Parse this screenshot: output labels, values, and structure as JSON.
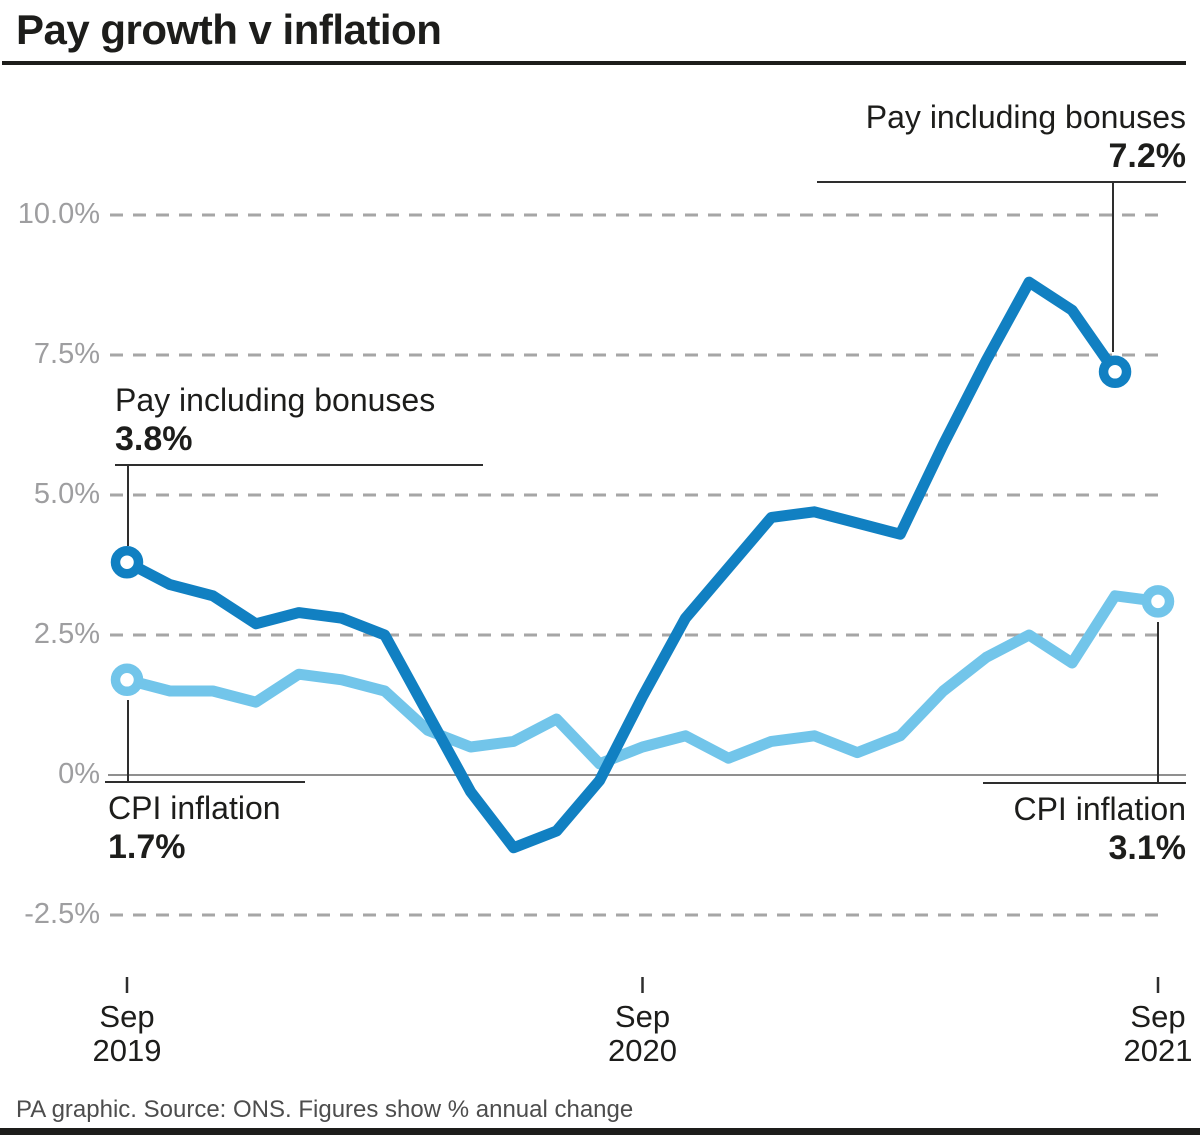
{
  "header": {
    "title": "Pay growth v inflation"
  },
  "footer": {
    "credit": "PA graphic. Source: ONS. Figures show % annual change"
  },
  "colors": {
    "pay": "#1180c2",
    "cpi": "#72c5ea",
    "grid": "#a6a6a6",
    "zero_line": "#8f8f8f",
    "axis_label": "#9e9ea0",
    "connector": "#2e2e2e"
  },
  "chart_data": {
    "type": "line",
    "title": "Pay growth v inflation",
    "note": "Figures show % annual change",
    "x_interval": "monthly",
    "x_range": [
      "Sep 2019",
      "Sep 2021"
    ],
    "ylim": [
      -2.5,
      10.0
    ],
    "grid": "horizontal dashed",
    "y_ticks": [
      {
        "label": "10.0%",
        "value": 10.0
      },
      {
        "label": "7.5%",
        "value": 7.5
      },
      {
        "label": "5.0%",
        "value": 5.0
      },
      {
        "label": "2.5%",
        "value": 2.5
      },
      {
        "label": "0%",
        "value": 0
      },
      {
        "label": "-2.5%",
        "value": -2.5
      }
    ],
    "x_ticks": [
      {
        "line1": "Sep",
        "line2": "2019",
        "month_index": 0
      },
      {
        "line1": "Sep",
        "line2": "2020",
        "month_index": 12
      },
      {
        "line1": "Sep",
        "line2": "2021",
        "month_index": 24
      }
    ],
    "series": [
      {
        "name": "Pay including bonuses",
        "color_key": "pay",
        "start_month_index": 0,
        "values": [
          3.8,
          3.4,
          3.2,
          2.7,
          2.9,
          2.8,
          2.5,
          1.1,
          -0.3,
          -1.3,
          -1.0,
          -0.1,
          1.4,
          2.8,
          3.7,
          4.6,
          4.7,
          4.5,
          4.3,
          5.9,
          7.4,
          8.8,
          8.3,
          7.2
        ],
        "first_value_label": "3.8%",
        "last_value_label": "7.2%"
      },
      {
        "name": "CPI inflation",
        "color_key": "cpi",
        "start_month_index": 0,
        "values": [
          1.7,
          1.5,
          1.5,
          1.3,
          1.8,
          1.7,
          1.5,
          0.8,
          0.5,
          0.6,
          1.0,
          0.2,
          0.5,
          0.7,
          0.3,
          0.6,
          0.7,
          0.4,
          0.7,
          1.5,
          2.1,
          2.5,
          2.0,
          3.2,
          3.1
        ],
        "first_value_label": "1.7%",
        "last_value_label": "3.1%"
      }
    ]
  },
  "annotations": [
    {
      "label": "Pay including bonuses",
      "value": "3.8%"
    },
    {
      "label": "Pay including bonuses",
      "value": "7.2%"
    },
    {
      "label": "CPI inflation",
      "value": "1.7%"
    },
    {
      "label": "CPI inflation",
      "value": "3.1%"
    }
  ]
}
